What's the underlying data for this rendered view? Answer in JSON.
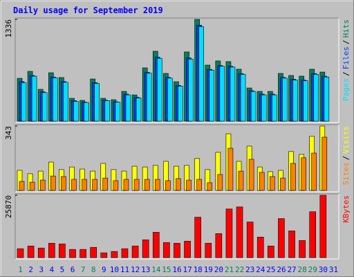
{
  "title": "Daily usage for September 2019",
  "chart_data": [
    {
      "type": "bar",
      "legend_separator": "/",
      "ylim": [
        0,
        1336
      ],
      "yticks": [
        1336
      ],
      "series": [
        {
          "name": "Hits",
          "color": "#00805c",
          "values": [
            563,
            654,
            418,
            636,
            573,
            300,
            273,
            554,
            300,
            282,
            391,
            345,
            700,
            918,
            627,
            518,
            909,
            1336,
            736,
            791,
            782,
            682,
            436,
            391,
            391,
            627,
            600,
            591,
            682,
            645,
            0
          ]
        },
        {
          "name": "Files",
          "color": "#0040ff",
          "values": [
            520,
            600,
            385,
            580,
            520,
            270,
            250,
            505,
            275,
            255,
            355,
            315,
            640,
            840,
            575,
            470,
            830,
            1260,
            680,
            730,
            720,
            625,
            400,
            355,
            355,
            575,
            550,
            540,
            625,
            590,
            0
          ]
        },
        {
          "name": "Pages",
          "color": "#00e0ff",
          "values": [
            505,
            590,
            375,
            570,
            510,
            260,
            245,
            495,
            270,
            250,
            345,
            305,
            630,
            825,
            565,
            460,
            815,
            1240,
            670,
            720,
            710,
            615,
            390,
            345,
            345,
            565,
            540,
            530,
            615,
            580,
            0
          ]
        }
      ]
    },
    {
      "type": "bar",
      "legend_separator": "/",
      "ylim": [
        0,
        343
      ],
      "yticks": [
        343
      ],
      "series": [
        {
          "name": "Visits",
          "color": "#ffff00",
          "values": [
            107,
            89,
            103,
            151,
            111,
            125,
            114,
            103,
            144,
            111,
            103,
            129,
            125,
            133,
            155,
            129,
            133,
            170,
            111,
            203,
            302,
            155,
            236,
            125,
            100,
            107,
            207,
            192,
            288,
            343,
            0
          ]
        },
        {
          "name": "Sites",
          "color": "#ff8000",
          "values": [
            48,
            44,
            55,
            77,
            74,
            59,
            59,
            59,
            66,
            52,
            59,
            59,
            59,
            59,
            52,
            63,
            55,
            59,
            41,
            85,
            225,
            103,
            166,
            96,
            74,
            66,
            144,
            174,
            199,
            284,
            0
          ]
        }
      ]
    },
    {
      "type": "bar",
      "ylim": [
        0,
        25870
      ],
      "yticks": [
        25870
      ],
      "categories": [
        "1",
        "2",
        "3",
        "4",
        "5",
        "6",
        "7",
        "8",
        "9",
        "10",
        "11",
        "12",
        "13",
        "14",
        "15",
        "16",
        "17",
        "18",
        "19",
        "20",
        "21",
        "22",
        "23",
        "24",
        "25",
        "26",
        "27",
        "28",
        "29",
        "30",
        "31"
      ],
      "label_colors": [
        "#00805c",
        "#0000ff",
        "#0000ff",
        "#0000ff",
        "#0000ff",
        "#0000ff",
        "#00805c",
        "#00805c",
        "#0000ff",
        "#0000ff",
        "#0000ff",
        "#0000ff",
        "#0000ff",
        "#00805c",
        "#00805c",
        "#0000ff",
        "#0000ff",
        "#0000ff",
        "#0000ff",
        "#0000ff",
        "#00805c",
        "#00805c",
        "#0000ff",
        "#0000ff",
        "#0000ff",
        "#0000ff",
        "#0000ff",
        "#00805c",
        "#00805c",
        "#0000ff",
        "#0000ff"
      ],
      "series": [
        {
          "name": "KBytes",
          "color": "#ff0000",
          "values": [
            3696,
            4833,
            3980,
            5970,
            5686,
            3411,
            3411,
            4264,
            1990,
            2559,
            3696,
            4833,
            7391,
            10518,
            6254,
            5970,
            6823,
            16772,
            5970,
            9950,
            20184,
            21037,
            14783,
            8529,
            4833,
            16204,
            11087,
            7107,
            19047,
            25870,
            0
          ]
        }
      ]
    }
  ]
}
